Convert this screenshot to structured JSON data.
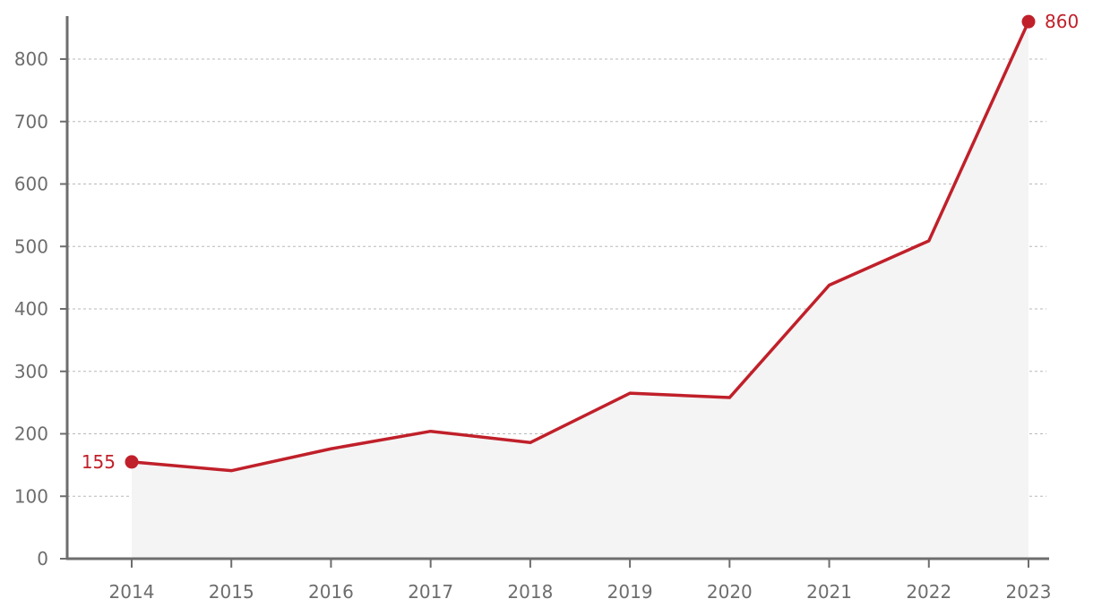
{
  "chart_data": {
    "type": "area",
    "title": "",
    "xlabel": "",
    "ylabel": "",
    "categories": [
      "2014",
      "2015",
      "2016",
      "2017",
      "2018",
      "2019",
      "2020",
      "2021",
      "2022",
      "2023"
    ],
    "series": [
      {
        "values": [
          155,
          141,
          176,
          204,
          186,
          265,
          258,
          438,
          509,
          860
        ]
      }
    ],
    "ylim": [
      0,
      860
    ],
    "y_ticks": [
      0,
      100,
      200,
      300,
      400,
      500,
      600,
      700,
      800
    ],
    "y_tick_labels": [
      "0",
      "100",
      "200",
      "300",
      "400",
      "500",
      "600",
      "700",
      "800"
    ],
    "grid": "horizontal dashed",
    "legend": "none",
    "annotations": {
      "start_label": "155",
      "end_label": "860"
    },
    "colors": {
      "line": "#c0202a",
      "area_fill": "#f4f4f4",
      "axis": "#6d6d6d",
      "grid": "#b8b8b8",
      "tick_text": "#6d6d6d"
    }
  }
}
